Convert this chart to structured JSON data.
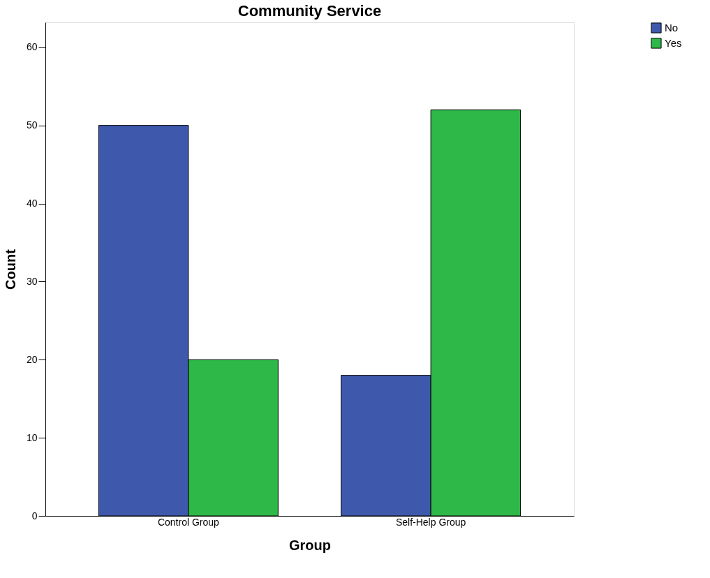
{
  "chart_data": {
    "type": "bar",
    "title": "Community Service",
    "xlabel": "Group",
    "ylabel": "Count",
    "categories": [
      "Control Group",
      "Self-Help Group"
    ],
    "series": [
      {
        "name": "No",
        "color": "#3e58ac",
        "values": [
          50,
          18
        ]
      },
      {
        "name": "Yes",
        "color": "#2eb848",
        "values": [
          20,
          52
        ]
      }
    ],
    "ylim": [
      0,
      63.2
    ],
    "yticks": [
      0,
      10,
      20,
      30,
      40,
      50,
      60
    ],
    "legend": "top right"
  }
}
